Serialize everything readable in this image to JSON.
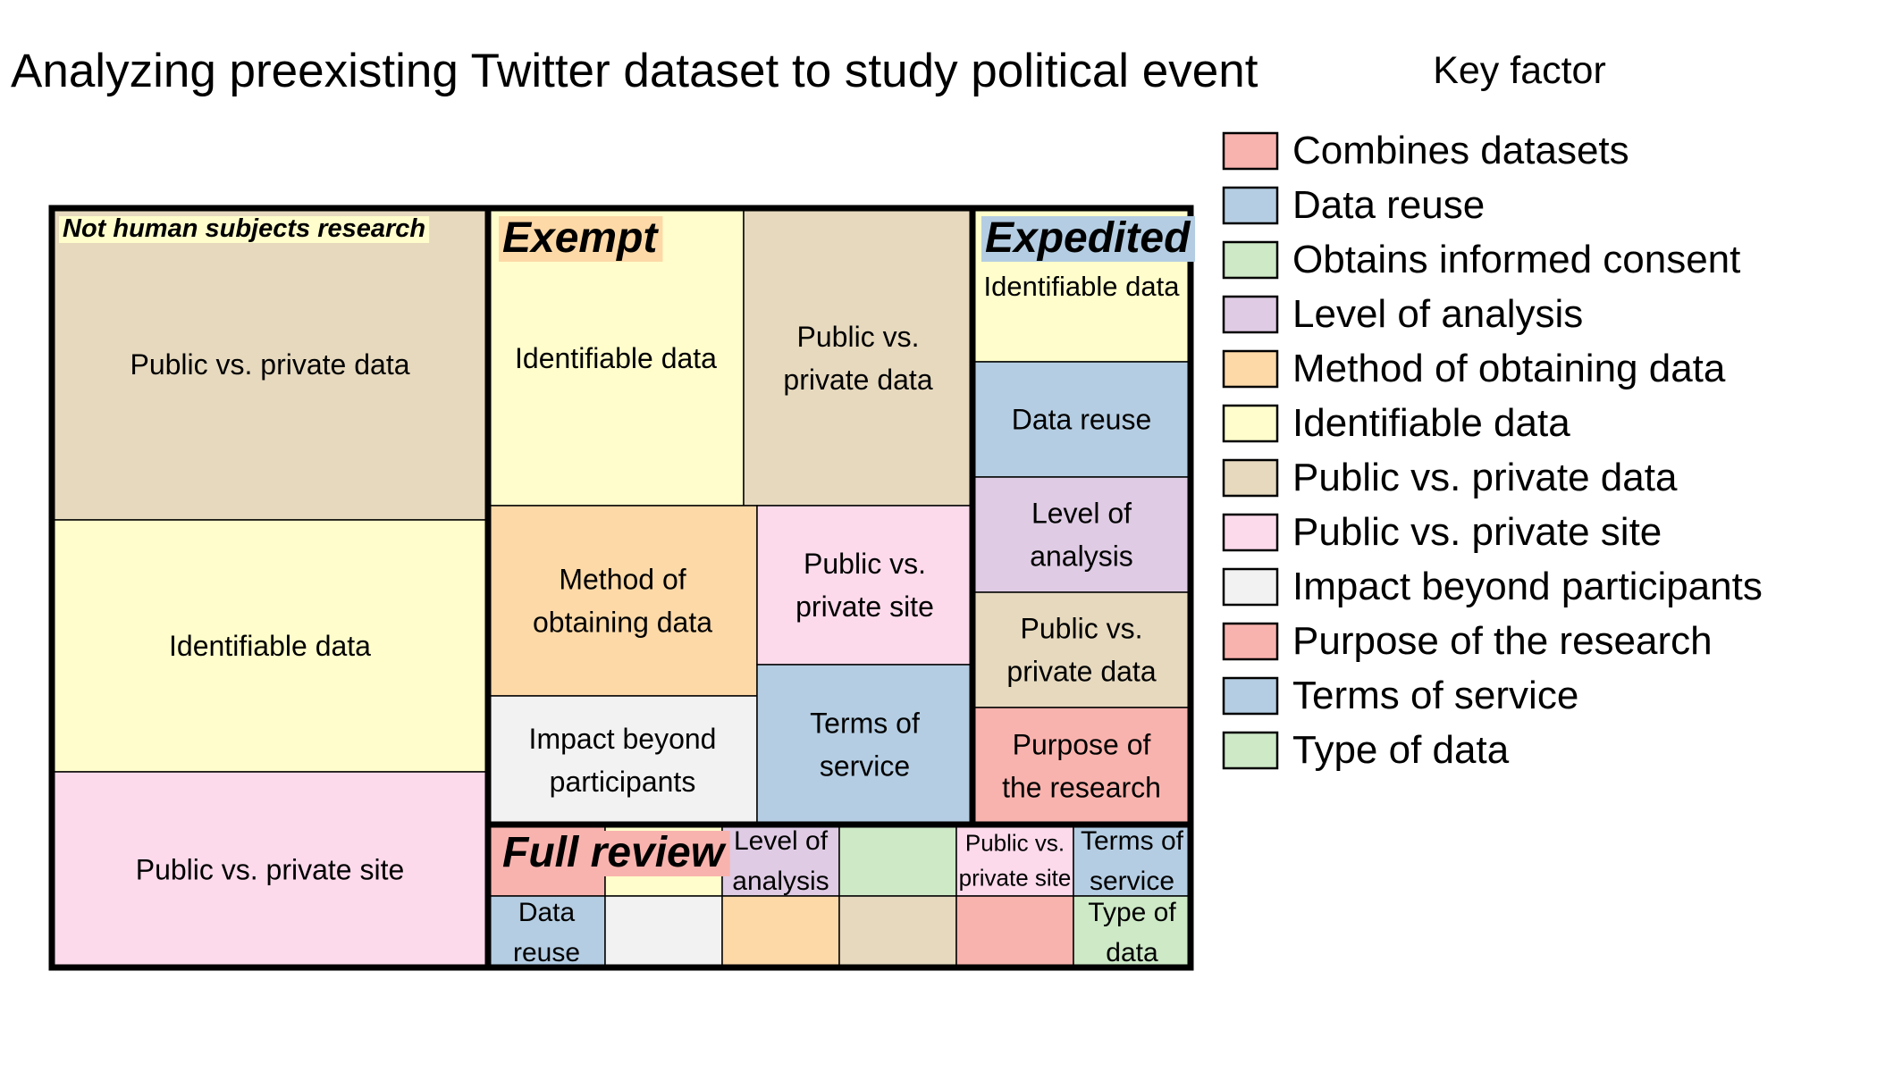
{
  "chart_data": {
    "type": "treemap",
    "title": "Analyzing preexisting Twitter dataset to study political event",
    "legend": {
      "title": "Key factor",
      "placement": "right",
      "items": [
        {
          "label": "Combines datasets",
          "color": "#F9B3AE"
        },
        {
          "label": "Data reuse",
          "color": "#B4CDE2"
        },
        {
          "label": "Obtains informed consent",
          "color": "#CDE9C6"
        },
        {
          "label": "Level of analysis",
          "color": "#DFCBE4"
        },
        {
          "label": "Method of obtaining data",
          "color": "#FDD9A7"
        },
        {
          "label": "Identifiable data",
          "color": "#FEFDCB"
        },
        {
          "label": "Public vs. private data",
          "color": "#E6D9BE"
        },
        {
          "label": "Public vs. private site",
          "color": "#FCDAEB"
        },
        {
          "label": "Impact beyond participants",
          "color": "#F2F2F2"
        },
        {
          "label": "Purpose of the research",
          "color": "#F9B3AE"
        },
        {
          "label": "Terms of service",
          "color": "#B4CDE2"
        },
        {
          "label": "Type of data",
          "color": "#CDE9C6"
        }
      ]
    },
    "groups": [
      {
        "name": "Not human subjects research",
        "name_bg": "#FEFDCB",
        "items": [
          {
            "factor": "Public vs. private data",
            "label": "Public vs. private data"
          },
          {
            "factor": "Identifiable data",
            "label": "Identifiable data"
          },
          {
            "factor": "Public vs. private site",
            "label": "Public vs. private site"
          }
        ]
      },
      {
        "name": "Exempt",
        "name_bg": "#FDD9A7",
        "items": [
          {
            "factor": "Identifiable data",
            "label": "Identifiable data"
          },
          {
            "factor": "Public vs. private data",
            "label": "Public vs. private data"
          },
          {
            "factor": "Method of obtaining data",
            "label": "Method of obtaining data"
          },
          {
            "factor": "Public vs. private site",
            "label": "Public vs. private site"
          },
          {
            "factor": "Impact beyond participants",
            "label": "Impact beyond participants"
          },
          {
            "factor": "Terms of service",
            "label": "Terms of service"
          }
        ]
      },
      {
        "name": "Expedited",
        "name_bg": "#B4CDE2",
        "items": [
          {
            "factor": "Identifiable data",
            "label": "Identifiable data"
          },
          {
            "factor": "Data reuse",
            "label": "Data reuse"
          },
          {
            "factor": "Level of analysis",
            "label": "Level of analysis"
          },
          {
            "factor": "Public vs. private data",
            "label": "Public vs. private data"
          },
          {
            "factor": "Purpose of the research",
            "label": "Purpose of the research"
          }
        ]
      },
      {
        "name": "Full review",
        "name_bg": "#F9B3AE",
        "items": [
          {
            "factor": "Combines datasets",
            "label": ""
          },
          {
            "factor": "Identifiable data",
            "label": ""
          },
          {
            "factor": "Level of analysis",
            "label": "Level of analysis"
          },
          {
            "factor": "Obtains informed consent",
            "label": ""
          },
          {
            "factor": "Public vs. private site",
            "label": "Public vs. private site"
          },
          {
            "factor": "Terms of service",
            "label": "Terms of service"
          },
          {
            "factor": "Data reuse",
            "label": "Data reuse"
          },
          {
            "factor": "Impact beyond participants",
            "label": ""
          },
          {
            "factor": "Method of obtaining data",
            "label": ""
          },
          {
            "factor": "Public vs. private data",
            "label": ""
          },
          {
            "factor": "Purpose of the research",
            "label": ""
          },
          {
            "factor": "Type of data",
            "label": "Type of data"
          }
        ]
      }
    ]
  }
}
